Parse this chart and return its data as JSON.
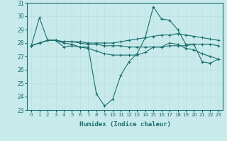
{
  "xlabel": "Humidex (Indice chaleur)",
  "bg_color": "#c8eaea",
  "grid_color": "#c0dede",
  "line_color": "#1a6e6e",
  "x_values": [
    0,
    1,
    2,
    3,
    4,
    5,
    6,
    7,
    8,
    9,
    10,
    11,
    12,
    13,
    14,
    15,
    16,
    17,
    18,
    19,
    20,
    21,
    22,
    23
  ],
  "line1": [
    27.8,
    29.9,
    28.2,
    28.2,
    27.7,
    27.8,
    27.7,
    27.7,
    24.2,
    23.3,
    23.8,
    25.6,
    26.6,
    27.2,
    28.4,
    30.7,
    29.8,
    29.7,
    29.0,
    27.9,
    27.9,
    26.6,
    26.5,
    26.8
  ],
  "line2": [
    27.8,
    28.0,
    28.2,
    28.2,
    28.1,
    28.1,
    28.0,
    27.9,
    27.9,
    27.8,
    27.8,
    27.8,
    27.7,
    27.7,
    27.7,
    27.7,
    27.7,
    27.8,
    27.8,
    27.8,
    27.9,
    27.9,
    27.9,
    27.8
  ],
  "line3": [
    27.8,
    28.0,
    28.2,
    28.2,
    28.1,
    28.1,
    28.1,
    28.0,
    28.0,
    28.0,
    28.0,
    28.1,
    28.2,
    28.3,
    28.4,
    28.5,
    28.6,
    28.6,
    28.7,
    28.6,
    28.5,
    28.4,
    28.3,
    28.2
  ],
  "line4": [
    27.8,
    28.0,
    28.2,
    28.2,
    28.0,
    27.9,
    27.7,
    27.6,
    27.4,
    27.2,
    27.1,
    27.1,
    27.1,
    27.1,
    27.3,
    27.7,
    27.7,
    28.0,
    27.9,
    27.6,
    27.5,
    27.2,
    27.0,
    26.8
  ],
  "ylim": [
    23,
    31
  ],
  "yticks": [
    23,
    24,
    25,
    26,
    27,
    28,
    29,
    30,
    31
  ],
  "xticks": [
    0,
    1,
    2,
    3,
    4,
    5,
    6,
    7,
    8,
    9,
    10,
    11,
    12,
    13,
    14,
    15,
    16,
    17,
    18,
    19,
    20,
    21,
    22,
    23
  ]
}
